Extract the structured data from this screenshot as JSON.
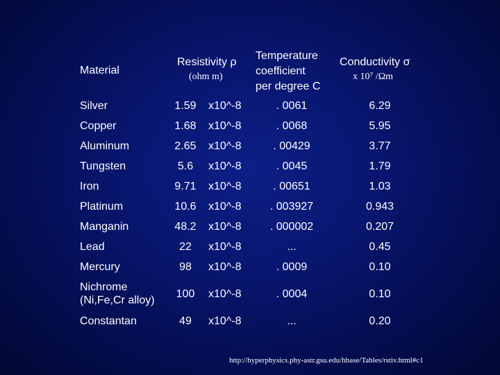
{
  "headers": {
    "material": "Material",
    "resistivity": "Resistivity ρ",
    "resistivity_unit": "(ohm m)",
    "temp_line1": "Temperature",
    "temp_line2": "coefficient",
    "temp_line3": "per degree C",
    "conductivity": "Conductivity σ",
    "conductivity_unit": "x 10⁷ /Ωm"
  },
  "rows": [
    {
      "material": "Silver",
      "rho": "1.59",
      "exp": "x10^-8",
      "tc": ". 0061",
      "sigma": "6.29"
    },
    {
      "material": "Copper",
      "rho": "1.68",
      "exp": "x10^-8",
      "tc": ". 0068",
      "sigma": "5.95"
    },
    {
      "material": "Aluminum",
      "rho": "2.65",
      "exp": "x10^-8",
      "tc": ". 00429",
      "sigma": "3.77"
    },
    {
      "material": "Tungsten",
      "rho": "5.6",
      "exp": "x10^-8",
      "tc": ". 0045",
      "sigma": "1.79"
    },
    {
      "material": "Iron",
      "rho": "9.71",
      "exp": "x10^-8",
      "tc": ". 00651",
      "sigma": "1.03"
    },
    {
      "material": "Platinum",
      "rho": "10.6",
      "exp": "x10^-8",
      "tc": ". 003927",
      "sigma": "0.943"
    },
    {
      "material": "Manganin",
      "rho": "48.2",
      "exp": "x10^-8",
      "tc": ". 000002",
      "sigma": "0.207"
    },
    {
      "material": "Lead",
      "rho": "22",
      "exp": "x10^-8",
      "tc": "...",
      "sigma": "0.45"
    },
    {
      "material": "Mercury",
      "rho": "98",
      "exp": "x10^-8",
      "tc": ". 0009",
      "sigma": "0.10"
    },
    {
      "material": "Nichrome\n(Ni,Fe,Cr alloy)",
      "rho": "100",
      "exp": "x10^-8",
      "tc": ". 0004",
      "sigma": "0.10"
    },
    {
      "material": "Constantan",
      "rho": "49",
      "exp": "x10^-8",
      "tc": "...",
      "sigma": "0.20"
    }
  ],
  "footer": {
    "source": "http://hyperphysics.phy-astr.gsu.edu/hbase/Tables/rstiv.html#c1"
  }
}
